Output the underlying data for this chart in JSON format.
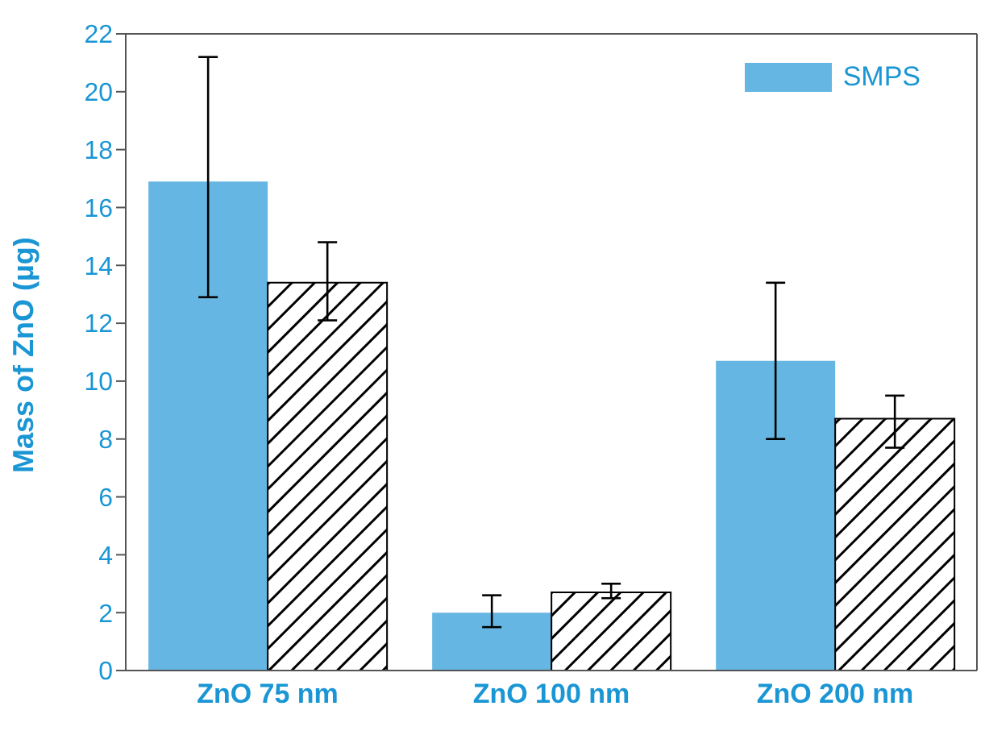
{
  "chart_data": {
    "type": "bar",
    "ylabel": "Mass of ZnO (µg)",
    "categories": [
      "ZnO 75 nm",
      "ZnO 100 nm",
      "ZnO 200 nm"
    ],
    "series": [
      {
        "name": "SMPS",
        "color": "#66b6e3",
        "values": [
          16.9,
          2.0,
          10.7
        ],
        "errors": [
          [
            12.9,
            21.2
          ],
          [
            1.5,
            2.6
          ],
          [
            8.0,
            13.4
          ]
        ]
      },
      {
        "color": "#000000",
        "values": [
          13.4,
          2.7,
          8.7
        ],
        "errors": [
          [
            12.1,
            14.8
          ],
          [
            2.5,
            3.0
          ],
          [
            7.7,
            9.5
          ]
        ]
      }
    ],
    "ylim": [
      0,
      22
    ],
    "yticks": [
      0,
      2,
      4,
      6,
      8,
      10,
      12,
      14,
      16,
      18,
      20,
      22
    ],
    "legend": "top right"
  }
}
